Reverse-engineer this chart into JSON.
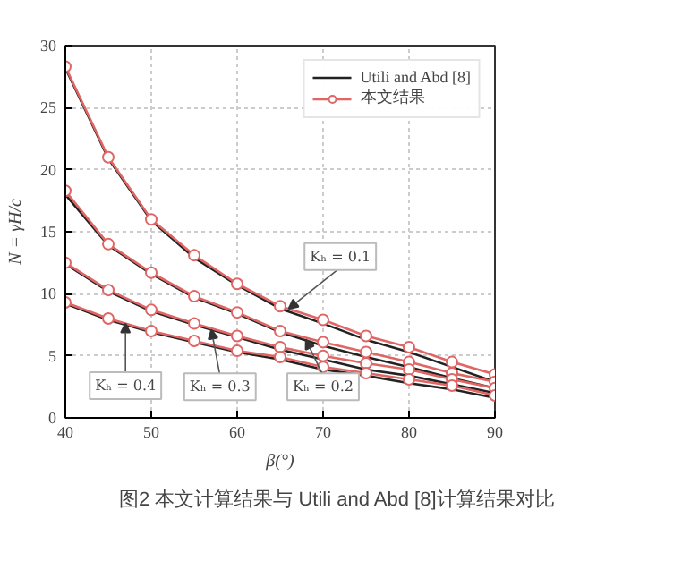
{
  "chart_data": {
    "type": "line",
    "xlabel": "β(°)",
    "ylabel": "N = γH/c",
    "x": [
      40,
      45,
      50,
      55,
      60,
      65,
      70,
      75,
      80,
      85,
      90
    ],
    "xlim": [
      40,
      90
    ],
    "ylim": [
      0,
      30
    ],
    "xticks": [
      40,
      50,
      60,
      70,
      80,
      90
    ],
    "yticks": [
      0,
      5,
      10,
      15,
      20,
      25,
      30
    ],
    "grid": true,
    "legend": "top right",
    "series": [
      {
        "name": "Utili and Abd [8]",
        "color": "#222222",
        "marker": "none",
        "values": [
          28.2,
          20.9,
          15.9,
          12.9,
          10.7,
          8.8,
          7.6,
          6.3,
          5.3,
          4.1,
          2.9
        ]
      },
      {
        "color": "#222222",
        "marker": "none",
        "values": [
          18.0,
          13.9,
          11.6,
          9.7,
          8.4,
          6.9,
          5.8,
          4.9,
          4.1,
          3.2,
          2.4
        ]
      },
      {
        "color": "#222222",
        "marker": "none",
        "values": [
          12.4,
          10.2,
          8.6,
          7.5,
          6.5,
          5.5,
          4.7,
          3.9,
          3.4,
          2.7,
          2.0
        ]
      },
      {
        "color": "#222222",
        "marker": "none",
        "values": [
          9.2,
          7.9,
          6.9,
          6.1,
          5.3,
          4.7,
          3.9,
          3.4,
          2.8,
          2.3,
          1.6
        ]
      },
      {
        "name": "本文结果",
        "color": "#e06666",
        "marker": "circle",
        "values": [
          28.3,
          21.0,
          16.0,
          13.1,
          10.8,
          9.0,
          7.9,
          6.6,
          5.7,
          4.5,
          3.5
        ]
      },
      {
        "color": "#e06666",
        "marker": "circle",
        "values": [
          18.3,
          14.0,
          11.7,
          9.8,
          8.5,
          7.0,
          6.1,
          5.3,
          4.5,
          3.6,
          2.9
        ]
      },
      {
        "color": "#e06666",
        "marker": "circle",
        "values": [
          12.5,
          10.3,
          8.7,
          7.6,
          6.6,
          5.7,
          5.0,
          4.4,
          3.9,
          3.1,
          2.4
        ]
      },
      {
        "color": "#e06666",
        "marker": "circle",
        "values": [
          9.3,
          8.0,
          7.0,
          6.2,
          5.4,
          4.9,
          4.1,
          3.6,
          3.1,
          2.6,
          1.8
        ]
      }
    ],
    "annotations": [
      {
        "text": "Kₕ = 0.1",
        "x": 66,
        "y": 8.8
      },
      {
        "text": "Kₕ = 0.4",
        "x": 47,
        "y": 7.6
      },
      {
        "text": "Kₕ = 0.3",
        "x": 57,
        "y": 7.1
      },
      {
        "text": "Kₕ = 0.2",
        "x": 68,
        "y": 6.3
      },
      "图2 本文计算结果与 Utili and Abd [8]计算结果对比"
    ]
  }
}
